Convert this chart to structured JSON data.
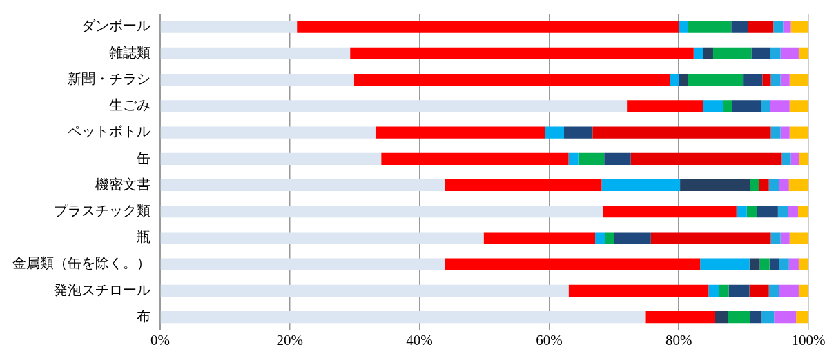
{
  "chart_data": {
    "type": "bar",
    "orientation": "horizontal",
    "stacked": true,
    "categories": [
      "ダンボール",
      "雑誌類",
      "新聞・チラシ",
      "生ごみ",
      "ペットボトル",
      "缶",
      "機密文書",
      "プラスチック類",
      "瓶",
      "金属類（缶を除く。）",
      "発泡スチロール",
      "布"
    ],
    "series": [
      {
        "color": "#dce6f2",
        "values": [
          21.1,
          29.3,
          29.9,
          72.0,
          33.2,
          34.1,
          43.9,
          68.3,
          49.9,
          43.9,
          63.0,
          74.9
        ]
      },
      {
        "color": "#ff0000",
        "values": [
          58.9,
          53.0,
          48.7,
          11.8,
          26.2,
          28.9,
          24.2,
          20.6,
          17.2,
          39.4,
          21.6,
          10.7
        ]
      },
      {
        "color": "#00b0f0",
        "values": [
          1.4,
          1.5,
          1.4,
          3.0,
          2.9,
          1.5,
          12.1,
          1.6,
          1.5,
          7.6,
          1.6,
          0
        ]
      },
      {
        "color": "#254061",
        "values": [
          0,
          1.5,
          1.4,
          0,
          0,
          0,
          10.8,
          0,
          0,
          1.6,
          0,
          2.0
        ]
      },
      {
        "color": "#00b050",
        "values": [
          6.7,
          5.9,
          8.6,
          1.4,
          0,
          4.0,
          1.4,
          1.6,
          1.4,
          1.5,
          1.5,
          3.4
        ]
      },
      {
        "color": "#1f497d",
        "values": [
          2.6,
          2.9,
          2.9,
          4.5,
          4.4,
          4.1,
          0,
          3.2,
          5.7,
          1.5,
          3.2,
          1.8
        ]
      },
      {
        "color": "#e60000",
        "values": [
          3.9,
          0,
          1.3,
          0,
          27.5,
          23.3,
          1.5,
          0,
          18.5,
          0,
          3.0,
          0
        ]
      },
      {
        "color": "#1fa9e1",
        "values": [
          1.5,
          1.6,
          1.5,
          1.4,
          1.5,
          1.4,
          1.6,
          1.6,
          1.5,
          1.5,
          1.6,
          1.9
        ]
      },
      {
        "color": "#cc66ff",
        "values": [
          1.2,
          2.8,
          1.4,
          3.0,
          1.4,
          1.3,
          1.5,
          1.5,
          1.4,
          1.5,
          3.0,
          3.4
        ]
      },
      {
        "color": "#ffc000",
        "values": [
          2.7,
          1.5,
          2.9,
          2.9,
          2.9,
          1.4,
          3.0,
          1.6,
          2.9,
          1.5,
          1.5,
          1.9
        ]
      }
    ],
    "xlim": [
      0,
      100
    ],
    "xticks": [
      {
        "value": 0,
        "label": "0%"
      },
      {
        "value": 20,
        "label": "20%"
      },
      {
        "value": 40,
        "label": "40%"
      },
      {
        "value": 60,
        "label": "60%"
      },
      {
        "value": 80,
        "label": "80%"
      },
      {
        "value": 100,
        "label": "100%"
      }
    ],
    "grid": "x",
    "legend": false
  }
}
